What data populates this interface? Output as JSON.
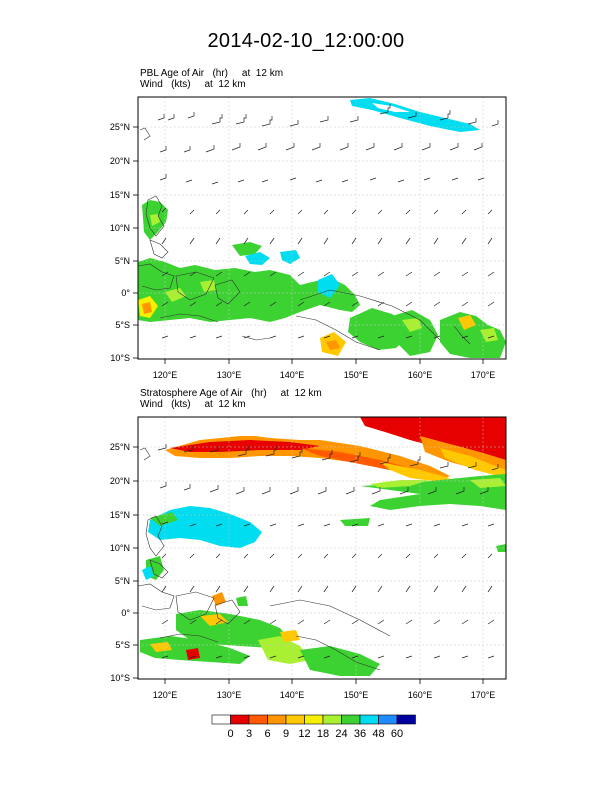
{
  "title": "2014-02-10_12:00:00",
  "panels": [
    {
      "field_label": "PBL Age of Air   (hr)     at  12 km",
      "wind_label": "Wind   (kts)     at  12 km",
      "lat_ticks": [
        "25°N",
        "20°N",
        "15°N",
        "10°N",
        "5°N",
        "0°",
        "5°S",
        "10°S"
      ],
      "lon_ticks": [
        "120°E",
        "130°E",
        "140°E",
        "150°E",
        "160°E",
        "170°E"
      ]
    },
    {
      "field_label": "Stratosphere Age of Air   (hr)     at  12 km",
      "wind_label": "Wind   (kts)     at  12 km",
      "lat_ticks": [
        "25°N",
        "20°N",
        "15°N",
        "10°N",
        "5°N",
        "0°",
        "5°S",
        "10°S"
      ],
      "lon_ticks": [
        "120°E",
        "130°E",
        "140°E",
        "150°E",
        "160°E",
        "170°E"
      ]
    }
  ],
  "map_extent": {
    "lon_min": 116,
    "lon_max": 174,
    "lat_min": -10,
    "lat_max": 29
  },
  "colorbar": {
    "levels": [
      "0",
      "3",
      "6",
      "9",
      "12",
      "18",
      "24",
      "36",
      "48",
      "60"
    ],
    "colors": [
      "#ffffff",
      "#e60000",
      "#ff5a00",
      "#ff9600",
      "#ffc800",
      "#f5f000",
      "#aaf032",
      "#3cd232",
      "#00dcf0",
      "#1e8cff",
      "#0000a0"
    ]
  }
}
